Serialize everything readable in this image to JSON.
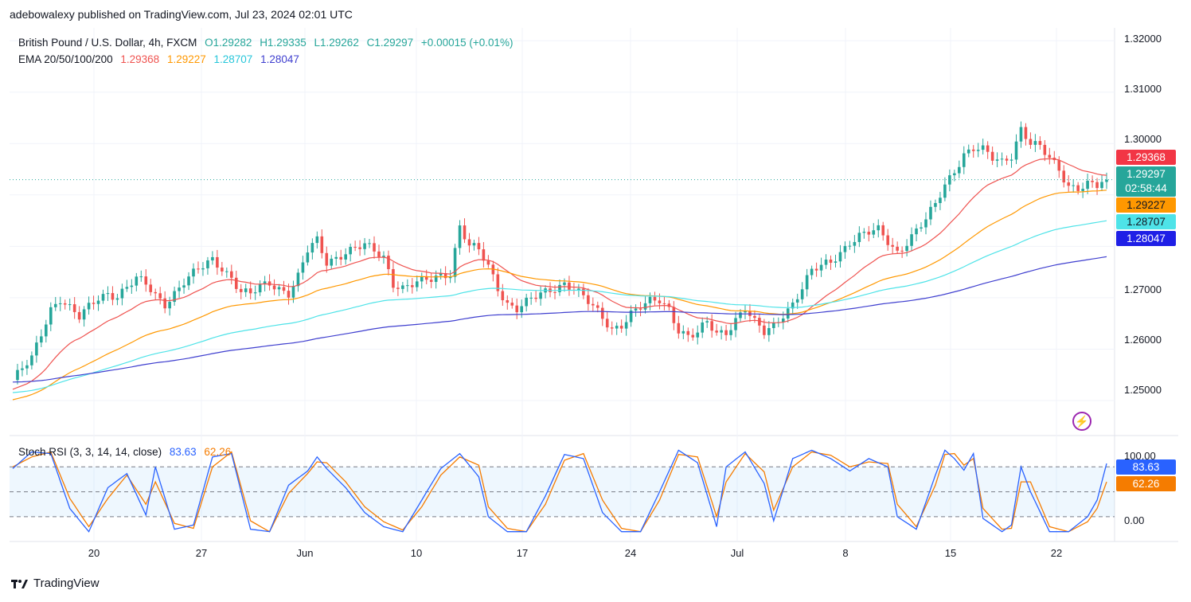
{
  "header": {
    "publisher": "adebowalexy published on TradingView.com, Jul 23, 2024 02:01 UTC"
  },
  "legend": {
    "symbol": "British Pound / U.S. Dollar, 4h, FXCM",
    "ohlc": {
      "o": "O1.29282",
      "h": "H1.29335",
      "l": "L1.29262",
      "c": "C1.29297",
      "chg": "+0.00015 (+0.01%)"
    },
    "ema_label": "EMA 20/50/100/200",
    "ema_values": [
      "1.29368",
      "1.29227",
      "1.28707",
      "1.28047"
    ]
  },
  "stoch": {
    "label": "Stoch RSI (3, 3, 14, 14, close)",
    "k": "83.63",
    "d": "62.26"
  },
  "price_tags": {
    "ema20": "1.29368",
    "last": "1.29297",
    "countdown": "02:58:44",
    "ema50": "1.29227",
    "ema100": "1.28707",
    "ema200": "1.28047",
    "stoch_k": "83.63",
    "stoch_d": "62.26"
  },
  "colors": {
    "up": "#26a69a",
    "down": "#ef5350",
    "ema20": "#ef5350",
    "ema50": "#ff9800",
    "ema100": "#4ee3e8",
    "ema200": "#3f3fcf",
    "stoch_k": "#2962ff",
    "stoch_d": "#f57c00"
  },
  "footer": {
    "brand": "TradingView"
  },
  "chart_data": [
    {
      "type": "candlestick",
      "title": "British Pound / U.S. Dollar, 4h, FXCM",
      "x_ticks": [
        "20",
        "27",
        "Jun",
        "10",
        "17",
        "24",
        "Jul",
        "8",
        "15",
        "22"
      ],
      "y_ticks": [
        "1.32000",
        "1.31000",
        "1.30000",
        "1.27000",
        "1.26000",
        "1.25000"
      ],
      "ylim": [
        1.2435,
        1.3225
      ],
      "price_path": [
        [
          0,
          1.254
        ],
        [
          2,
          1.256
        ],
        [
          4,
          1.258
        ],
        [
          6,
          1.263
        ],
        [
          8,
          1.268
        ],
        [
          10,
          1.27
        ],
        [
          12,
          1.268
        ],
        [
          14,
          1.266
        ],
        [
          16,
          1.268
        ],
        [
          18,
          1.27
        ],
        [
          20,
          1.271
        ],
        [
          22,
          1.2705
        ],
        [
          24,
          1.272
        ],
        [
          26,
          1.2735
        ],
        [
          28,
          1.2725
        ],
        [
          30,
          1.2705
        ],
        [
          32,
          1.269
        ],
        [
          34,
          1.271
        ],
        [
          36,
          1.273
        ],
        [
          38,
          1.2745
        ],
        [
          40,
          1.276
        ],
        [
          42,
          1.2775
        ],
        [
          44,
          1.276
        ],
        [
          46,
          1.274
        ],
        [
          48,
          1.271
        ],
        [
          50,
          1.2705
        ],
        [
          52,
          1.272
        ],
        [
          54,
          1.273
        ],
        [
          56,
          1.272
        ],
        [
          58,
          1.271
        ],
        [
          60,
          1.274
        ],
        [
          62,
          1.279
        ],
        [
          64,
          1.281
        ],
        [
          66,
          1.277
        ],
        [
          68,
          1.278
        ],
        [
          70,
          1.279
        ],
        [
          72,
          1.2795
        ],
        [
          74,
          1.28
        ],
        [
          76,
          1.279
        ],
        [
          78,
          1.278
        ],
        [
          80,
          1.273
        ],
        [
          82,
          1.272
        ],
        [
          84,
          1.2725
        ],
        [
          86,
          1.273
        ],
        [
          88,
          1.2735
        ],
        [
          90,
          1.2745
        ],
        [
          92,
          1.275
        ],
        [
          94,
          1.284
        ],
        [
          96,
          1.28
        ],
        [
          98,
          1.279
        ],
        [
          100,
          1.276
        ],
        [
          102,
          1.272
        ],
        [
          104,
          1.269
        ],
        [
          106,
          1.268
        ],
        [
          108,
          1.269
        ],
        [
          110,
          1.27
        ],
        [
          112,
          1.271
        ],
        [
          114,
          1.272
        ],
        [
          116,
          1.273
        ],
        [
          118,
          1.272
        ],
        [
          120,
          1.27
        ],
        [
          122,
          1.268
        ],
        [
          124,
          1.266
        ],
        [
          126,
          1.264
        ],
        [
          128,
          1.265
        ],
        [
          130,
          1.267
        ],
        [
          132,
          1.268
        ],
        [
          134,
          1.269
        ],
        [
          136,
          1.2695
        ],
        [
          138,
          1.268
        ],
        [
          140,
          1.264
        ],
        [
          142,
          1.2625
        ],
        [
          144,
          1.263
        ],
        [
          146,
          1.265
        ],
        [
          148,
          1.263
        ],
        [
          150,
          1.2635
        ],
        [
          152,
          1.266
        ],
        [
          154,
          1.268
        ],
        [
          156,
          1.265
        ],
        [
          158,
          1.263
        ],
        [
          160,
          1.2645
        ],
        [
          162,
          1.267
        ],
        [
          164,
          1.269
        ],
        [
          166,
          1.272
        ],
        [
          168,
          1.275
        ],
        [
          170,
          1.276
        ],
        [
          172,
          1.277
        ],
        [
          174,
          1.279
        ],
        [
          176,
          1.281
        ],
        [
          178,
          1.282
        ],
        [
          180,
          1.2825
        ],
        [
          182,
          1.283
        ],
        [
          184,
          1.281
        ],
        [
          186,
          1.279
        ],
        [
          188,
          1.281
        ],
        [
          190,
          1.283
        ],
        [
          192,
          1.285
        ],
        [
          194,
          1.288
        ],
        [
          196,
          1.292
        ],
        [
          198,
          1.295
        ],
        [
          200,
          1.298
        ],
        [
          202,
          1.299
        ],
        [
          204,
          1.2985
        ],
        [
          206,
          1.297
        ],
        [
          208,
          1.2965
        ],
        [
          210,
          1.298
        ],
        [
          212,
          1.303
        ],
        [
          214,
          1.3
        ],
        [
          216,
          1.299
        ],
        [
          218,
          1.297
        ],
        [
          220,
          1.295
        ],
        [
          222,
          1.292
        ],
        [
          224,
          1.2915
        ],
        [
          226,
          1.292
        ],
        [
          228,
          1.2915
        ],
        [
          230,
          1.293
        ]
      ],
      "series": [
        {
          "name": "EMA 20",
          "last": 1.29368
        },
        {
          "name": "EMA 50",
          "last": 1.29227
        },
        {
          "name": "EMA 100",
          "last": 1.28707
        },
        {
          "name": "EMA 200",
          "last": 1.28047
        }
      ]
    },
    {
      "type": "line",
      "title": "Stoch RSI (3, 3, 14, 14, close)",
      "y_ticks": [
        "100.00",
        "0.00"
      ],
      "ylim": [
        -5,
        110
      ],
      "levels": [
        80,
        50,
        20
      ],
      "k_path": [
        [
          0,
          78
        ],
        [
          4,
          98
        ],
        [
          8,
          96
        ],
        [
          12,
          30
        ],
        [
          16,
          2
        ],
        [
          20,
          55
        ],
        [
          24,
          72
        ],
        [
          28,
          22
        ],
        [
          30,
          80
        ],
        [
          34,
          5
        ],
        [
          38,
          10
        ],
        [
          42,
          92
        ],
        [
          46,
          96
        ],
        [
          50,
          5
        ],
        [
          54,
          2
        ],
        [
          58,
          58
        ],
        [
          62,
          75
        ],
        [
          64,
          92
        ],
        [
          66,
          78
        ],
        [
          70,
          55
        ],
        [
          74,
          25
        ],
        [
          78,
          8
        ],
        [
          82,
          2
        ],
        [
          86,
          40
        ],
        [
          90,
          78
        ],
        [
          94,
          96
        ],
        [
          98,
          68
        ],
        [
          100,
          20
        ],
        [
          104,
          2
        ],
        [
          108,
          2
        ],
        [
          112,
          45
        ],
        [
          116,
          95
        ],
        [
          120,
          90
        ],
        [
          124,
          25
        ],
        [
          128,
          2
        ],
        [
          132,
          2
        ],
        [
          136,
          50
        ],
        [
          140,
          100
        ],
        [
          144,
          85
        ],
        [
          148,
          8
        ],
        [
          150,
          80
        ],
        [
          154,
          98
        ],
        [
          158,
          60
        ],
        [
          160,
          15
        ],
        [
          164,
          90
        ],
        [
          168,
          100
        ],
        [
          172,
          90
        ],
        [
          176,
          75
        ],
        [
          180,
          90
        ],
        [
          184,
          80
        ],
        [
          186,
          20
        ],
        [
          190,
          5
        ],
        [
          194,
          70
        ],
        [
          196,
          100
        ],
        [
          198,
          90
        ],
        [
          200,
          76
        ],
        [
          202,
          96
        ],
        [
          204,
          18
        ],
        [
          208,
          2
        ],
        [
          210,
          10
        ],
        [
          212,
          80
        ],
        [
          214,
          50
        ],
        [
          218,
          2
        ],
        [
          222,
          2
        ],
        [
          226,
          20
        ],
        [
          228,
          40
        ],
        [
          230,
          84
        ]
      ],
      "d_path": [
        [
          0,
          80
        ],
        [
          4,
          92
        ],
        [
          8,
          98
        ],
        [
          12,
          42
        ],
        [
          16,
          8
        ],
        [
          20,
          42
        ],
        [
          24,
          70
        ],
        [
          28,
          35
        ],
        [
          30,
          62
        ],
        [
          34,
          12
        ],
        [
          38,
          6
        ],
        [
          42,
          80
        ],
        [
          46,
          98
        ],
        [
          50,
          15
        ],
        [
          54,
          2
        ],
        [
          58,
          48
        ],
        [
          62,
          72
        ],
        [
          64,
          86
        ],
        [
          66,
          85
        ],
        [
          70,
          62
        ],
        [
          74,
          32
        ],
        [
          78,
          14
        ],
        [
          82,
          4
        ],
        [
          86,
          32
        ],
        [
          90,
          70
        ],
        [
          94,
          92
        ],
        [
          98,
          82
        ],
        [
          100,
          32
        ],
        [
          104,
          6
        ],
        [
          108,
          2
        ],
        [
          112,
          35
        ],
        [
          116,
          88
        ],
        [
          120,
          96
        ],
        [
          124,
          40
        ],
        [
          128,
          6
        ],
        [
          132,
          2
        ],
        [
          136,
          40
        ],
        [
          140,
          95
        ],
        [
          144,
          92
        ],
        [
          148,
          20
        ],
        [
          150,
          62
        ],
        [
          154,
          96
        ],
        [
          158,
          74
        ],
        [
          160,
          28
        ],
        [
          164,
          80
        ],
        [
          168,
          98
        ],
        [
          172,
          94
        ],
        [
          176,
          80
        ],
        [
          180,
          86
        ],
        [
          184,
          84
        ],
        [
          186,
          35
        ],
        [
          190,
          8
        ],
        [
          194,
          58
        ],
        [
          196,
          95
        ],
        [
          198,
          96
        ],
        [
          200,
          82
        ],
        [
          202,
          90
        ],
        [
          204,
          30
        ],
        [
          208,
          5
        ],
        [
          210,
          6
        ],
        [
          212,
          62
        ],
        [
          214,
          62
        ],
        [
          218,
          8
        ],
        [
          222,
          2
        ],
        [
          226,
          14
        ],
        [
          228,
          30
        ],
        [
          230,
          62
        ]
      ]
    }
  ]
}
